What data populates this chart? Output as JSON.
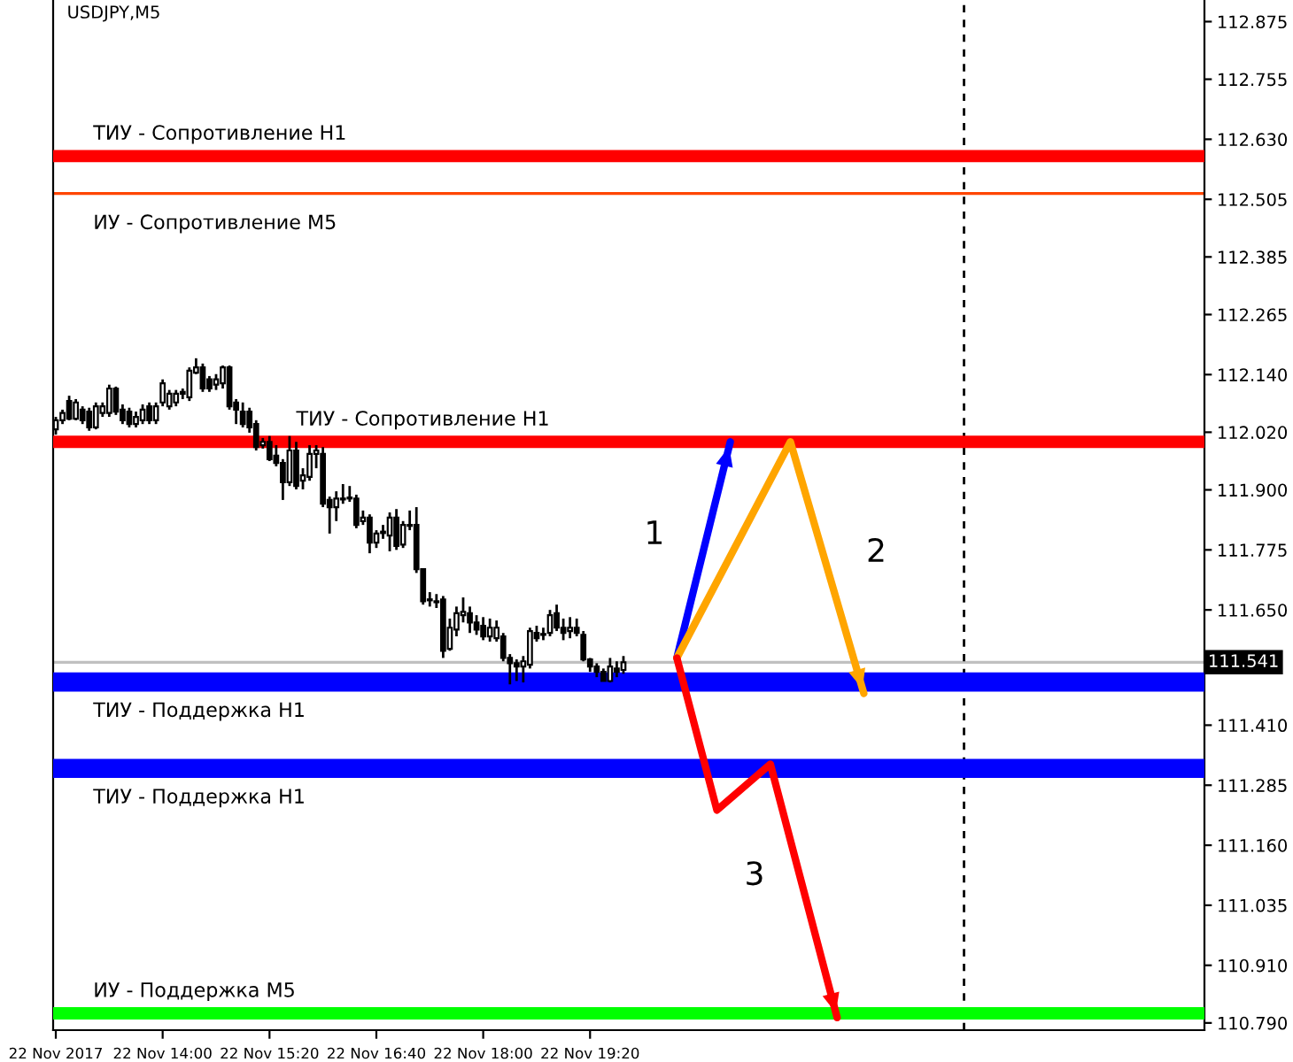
{
  "chart_data": {
    "type": "candlestick",
    "title": "USDJPY,M5",
    "x": [
      "2017-11-22T12:40",
      "2017-11-22T12:45",
      "2017-11-22T12:50",
      "2017-11-22T12:55",
      "2017-11-22T13:00",
      "2017-11-22T13:05",
      "2017-11-22T13:10",
      "2017-11-22T13:15",
      "2017-11-22T13:20",
      "2017-11-22T13:25",
      "2017-11-22T13:30",
      "2017-11-22T13:35",
      "2017-11-22T13:40",
      "2017-11-22T13:45",
      "2017-11-22T13:50",
      "2017-11-22T13:55",
      "2017-11-22T14:00",
      "2017-11-22T14:05",
      "2017-11-22T14:10",
      "2017-11-22T14:15",
      "2017-11-22T14:20",
      "2017-11-22T14:25",
      "2017-11-22T14:30",
      "2017-11-22T14:35",
      "2017-11-22T14:40",
      "2017-11-22T14:45",
      "2017-11-22T14:50",
      "2017-11-22T14:55",
      "2017-11-22T15:00",
      "2017-11-22T15:05",
      "2017-11-22T15:10",
      "2017-11-22T15:15",
      "2017-11-22T15:20",
      "2017-11-22T15:25",
      "2017-11-22T15:30",
      "2017-11-22T15:35",
      "2017-11-22T15:40",
      "2017-11-22T15:45",
      "2017-11-22T15:50",
      "2017-11-22T15:55",
      "2017-11-22T16:00",
      "2017-11-22T16:05",
      "2017-11-22T16:10",
      "2017-11-22T16:15",
      "2017-11-22T16:20",
      "2017-11-22T16:25",
      "2017-11-22T16:30",
      "2017-11-22T16:35",
      "2017-11-22T16:40",
      "2017-11-22T16:45",
      "2017-11-22T16:50",
      "2017-11-22T16:55",
      "2017-11-22T17:00",
      "2017-11-22T17:05",
      "2017-11-22T17:10",
      "2017-11-22T17:15",
      "2017-11-22T17:20",
      "2017-11-22T17:25",
      "2017-11-22T17:30",
      "2017-11-22T17:35",
      "2017-11-22T17:40",
      "2017-11-22T17:45",
      "2017-11-22T17:50",
      "2017-11-22T17:55",
      "2017-11-22T18:00",
      "2017-11-22T18:05",
      "2017-11-22T18:10",
      "2017-11-22T18:15",
      "2017-11-22T18:20",
      "2017-11-22T18:25",
      "2017-11-22T18:30",
      "2017-11-22T18:35",
      "2017-11-22T18:40",
      "2017-11-22T18:45",
      "2017-11-22T18:50",
      "2017-11-22T18:55",
      "2017-11-22T19:00",
      "2017-11-22T19:05",
      "2017-11-22T19:10",
      "2017-11-22T19:15",
      "2017-11-22T19:20",
      "2017-11-22T19:25",
      "2017-11-22T19:30",
      "2017-11-22T19:35",
      "2017-11-22T19:40",
      "2017-11-22T19:45"
    ],
    "ohlc": [
      [
        112.026,
        112.052,
        112.015,
        112.045
      ],
      [
        112.045,
        112.067,
        112.037,
        112.06
      ],
      [
        112.085,
        112.096,
        112.045,
        112.048
      ],
      [
        112.048,
        112.089,
        112.045,
        112.082
      ],
      [
        112.067,
        112.074,
        112.037,
        112.045
      ],
      [
        112.063,
        112.071,
        112.023,
        112.03
      ],
      [
        112.03,
        112.082,
        112.026,
        112.074
      ],
      [
        112.06,
        112.082,
        112.052,
        112.074
      ],
      [
        112.06,
        112.119,
        112.052,
        112.111
      ],
      [
        112.111,
        112.115,
        112.056,
        112.063
      ],
      [
        112.067,
        112.078,
        112.037,
        112.045
      ],
      [
        112.063,
        112.071,
        112.03,
        112.037
      ],
      [
        112.037,
        112.063,
        112.03,
        112.052
      ],
      [
        112.045,
        112.078,
        112.037,
        112.067
      ],
      [
        112.074,
        112.082,
        112.037,
        112.045
      ],
      [
        112.045,
        112.082,
        112.037,
        112.074
      ],
      [
        112.082,
        112.13,
        112.074,
        112.122
      ],
      [
        112.074,
        112.108,
        112.067,
        112.1
      ],
      [
        112.082,
        112.108,
        112.074,
        112.1
      ],
      [
        112.1,
        112.111,
        112.089,
        112.104
      ],
      [
        112.093,
        112.155,
        112.085,
        112.148
      ],
      [
        112.144,
        112.174,
        112.141,
        112.155
      ],
      [
        112.155,
        112.163,
        112.104,
        112.111
      ],
      [
        112.13,
        112.137,
        112.104,
        112.111
      ],
      [
        112.119,
        112.141,
        112.108,
        112.13
      ],
      [
        112.122,
        112.159,
        112.111,
        112.155
      ],
      [
        112.155,
        112.159,
        112.067,
        112.074
      ],
      [
        112.082,
        112.089,
        112.037,
        112.067
      ],
      [
        112.063,
        112.082,
        112.03,
        112.037
      ],
      [
        112.063,
        112.071,
        112.019,
        112.03
      ],
      [
        112.037,
        112.045,
        111.982,
        111.989
      ],
      [
        111.993,
        112.008,
        111.986,
        112.0
      ],
      [
        112.0,
        112.012,
        111.96,
        111.964
      ],
      [
        111.971,
        111.993,
        111.949,
        111.956
      ],
      [
        111.956,
        111.964,
        111.879,
        111.916
      ],
      [
        111.916,
        112.012,
        111.908,
        111.982
      ],
      [
        111.982,
        112.0,
        111.901,
        111.908
      ],
      [
        111.919,
        111.945,
        111.901,
        111.93
      ],
      [
        111.927,
        111.993,
        111.919,
        111.975
      ],
      [
        111.975,
        111.993,
        111.945,
        111.982
      ],
      [
        111.975,
        111.989,
        111.864,
        111.871
      ],
      [
        111.879,
        111.886,
        111.809,
        111.864
      ],
      [
        111.864,
        111.897,
        111.835,
        111.882
      ],
      [
        111.88,
        111.912,
        111.871,
        111.882
      ],
      [
        111.882,
        111.908,
        111.875,
        111.884
      ],
      [
        111.882,
        111.89,
        111.82,
        111.827
      ],
      [
        111.835,
        111.857,
        111.827,
        111.842
      ],
      [
        111.842,
        111.849,
        111.768,
        111.79
      ],
      [
        111.79,
        111.816,
        111.779,
        111.809
      ],
      [
        111.81,
        111.827,
        111.798,
        111.813
      ],
      [
        111.805,
        111.853,
        111.772,
        111.842
      ],
      [
        111.842,
        111.86,
        111.775,
        111.783
      ],
      [
        111.786,
        111.835,
        111.779,
        111.827
      ],
      [
        111.825,
        111.857,
        111.816,
        111.827
      ],
      [
        111.827,
        111.864,
        111.727,
        111.735
      ],
      [
        111.735,
        111.735,
        111.661,
        111.668
      ],
      [
        111.67,
        111.687,
        111.657,
        111.672
      ],
      [
        111.668,
        111.683,
        111.654,
        111.666
      ],
      [
        111.672,
        111.679,
        111.55,
        111.565
      ],
      [
        111.569,
        111.632,
        111.565,
        111.613
      ],
      [
        111.609,
        111.657,
        111.595,
        111.643
      ],
      [
        111.639,
        111.676,
        111.624,
        111.646
      ],
      [
        111.643,
        111.657,
        111.602,
        111.624
      ],
      [
        111.624,
        111.639,
        111.598,
        111.609
      ],
      [
        111.617,
        111.635,
        111.587,
        111.595
      ],
      [
        111.595,
        111.632,
        111.584,
        111.613
      ],
      [
        111.591,
        111.628,
        111.584,
        111.613
      ],
      [
        111.595,
        111.602,
        111.543,
        111.55
      ],
      [
        111.55,
        111.558,
        111.495,
        111.539
      ],
      [
        111.539,
        111.547,
        111.502,
        111.532
      ],
      [
        111.532,
        111.554,
        111.499,
        111.543
      ],
      [
        111.536,
        111.613,
        111.528,
        111.606
      ],
      [
        111.602,
        111.617,
        111.584,
        111.591
      ],
      [
        111.598,
        111.613,
        111.587,
        111.6
      ],
      [
        111.602,
        111.65,
        111.595,
        111.639
      ],
      [
        111.643,
        111.661,
        111.606,
        111.613
      ],
      [
        111.613,
        111.632,
        111.587,
        111.602
      ],
      [
        111.606,
        111.635,
        111.591,
        111.613
      ],
      [
        111.613,
        111.632,
        111.595,
        111.602
      ],
      [
        111.598,
        111.606,
        111.543,
        111.547
      ],
      [
        111.547,
        111.55,
        111.521,
        111.532
      ],
      [
        111.532,
        111.539,
        111.51,
        111.521
      ],
      [
        111.521,
        111.528,
        111.502,
        111.502
      ],
      [
        111.502,
        111.55,
        111.499,
        111.532
      ],
      [
        111.528,
        111.543,
        111.51,
        111.521
      ],
      [
        111.525,
        111.554,
        111.517,
        111.541
      ]
    ],
    "series": [
      {
        "type": "line",
        "color": "#0000ff",
        "x": [
          "2017-11-22T20:25",
          "2017-11-22T21:05"
        ],
        "values": [
          111.55,
          112.0
        ]
      },
      {
        "type": "line",
        "color": "#ffa500",
        "x": [
          "2017-11-22T20:25",
          "2017-11-22T21:50",
          "2017-11-22T22:45"
        ],
        "values": [
          111.55,
          112.0,
          111.476
        ]
      },
      {
        "type": "line",
        "color": "#ff0000",
        "x": [
          "2017-11-22T20:25",
          "2017-11-22T20:55",
          "2017-11-22T21:35",
          "2017-11-22T22:25"
        ],
        "values": [
          111.55,
          111.233,
          111.329,
          110.801
        ]
      }
    ],
    "annotations": [
      "1",
      "2",
      "3"
    ],
    "ref_lines": [
      {
        "axis": "y",
        "value": 112.595,
        "label": "ТИУ - Сопротивление H1",
        "color": "#ff0000"
      },
      {
        "axis": "y",
        "value": 112.517,
        "label": "ИУ - Сопротивление M5",
        "color": "#ff4500"
      },
      {
        "axis": "y",
        "value": 112.0,
        "label": "ТИУ - Сопротивление H1",
        "color": "#ff0000"
      },
      {
        "axis": "y",
        "value": 111.541,
        "label": "111.541",
        "color": "#c0c0c0"
      },
      {
        "axis": "y",
        "value": 110.81,
        "label": "ИУ - Поддержка M5",
        "color": "#00ff00"
      },
      {
        "axis": "x",
        "value": "2017-11-23T00:00",
        "color": "#000000",
        "line_style": "dashed"
      }
    ],
    "bands": [
      {
        "axis": "y",
        "from": 111.48,
        "to": 111.52,
        "label": "ТИУ - Поддержка H1",
        "color": "#0000ff"
      },
      {
        "axis": "y",
        "from": 111.3,
        "to": 111.34,
        "label": "ТИУ - Поддержка H1",
        "color": "#0000ff"
      }
    ],
    "xlim": [
      "2017-11-22T12:38",
      "2017-11-23T03:00"
    ],
    "xticks": [
      {
        "value": "2017-11-22T12:40",
        "label": "22 Nov 2017"
      },
      {
        "value": "2017-11-22T14:00",
        "label": "22 Nov 14:00"
      },
      {
        "value": "2017-11-22T15:20",
        "label": "22 Nov 15:20"
      },
      {
        "value": "2017-11-22T16:40",
        "label": "22 Nov 16:40"
      },
      {
        "value": "2017-11-22T18:00",
        "label": "22 Nov 18:00"
      },
      {
        "value": "2017-11-22T19:20",
        "label": "22 Nov 19:20"
      }
    ],
    "ylim": [
      110.775,
      112.92
    ],
    "yticks": [
      {
        "value": 112.875,
        "label": "112.875"
      },
      {
        "value": 112.755,
        "label": "112.755"
      },
      {
        "value": 112.63,
        "label": "112.630"
      },
      {
        "value": 112.505,
        "label": "112.505"
      },
      {
        "value": 112.385,
        "label": "112.385"
      },
      {
        "value": 112.265,
        "label": "112.265"
      },
      {
        "value": 112.14,
        "label": "112.140"
      },
      {
        "value": 112.02,
        "label": "112.020"
      },
      {
        "value": 111.9,
        "label": "111.900"
      },
      {
        "value": 111.775,
        "label": "111.775"
      },
      {
        "value": 111.65,
        "label": "111.650"
      },
      {
        "value": 111.41,
        "label": "111.410"
      },
      {
        "value": 111.285,
        "label": "111.285"
      },
      {
        "value": 111.16,
        "label": "111.160"
      },
      {
        "value": 111.035,
        "label": "111.035"
      },
      {
        "value": 110.91,
        "label": "110.910"
      },
      {
        "value": 110.79,
        "label": "110.790"
      }
    ],
    "grid": false,
    "legend": false
  }
}
